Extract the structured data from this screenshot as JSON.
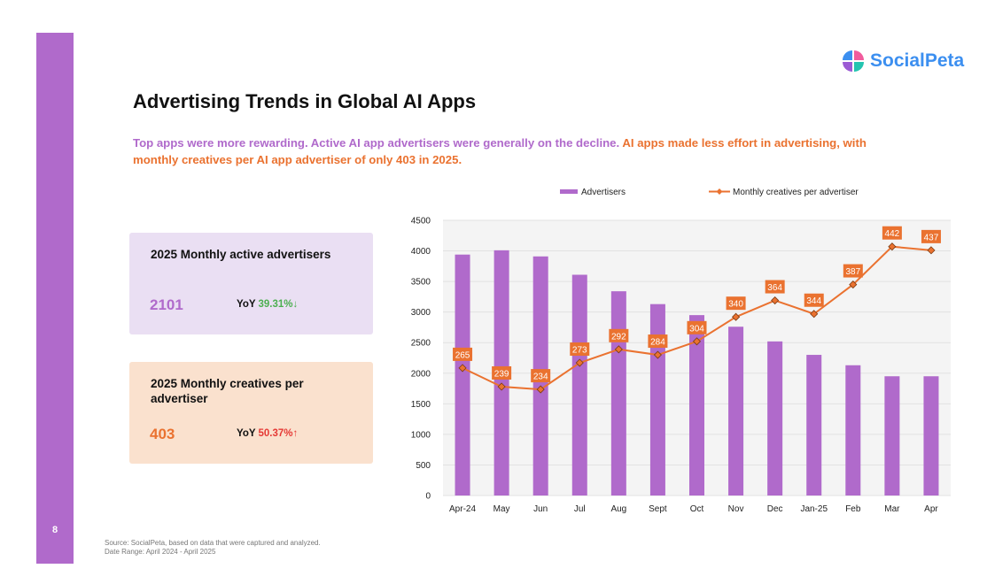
{
  "page": {
    "number": "8"
  },
  "logo": {
    "text": "SocialPeta",
    "colors": [
      "#3c8ff0",
      "#f15b9d",
      "#9b5bd4",
      "#23c4b0"
    ]
  },
  "title": "Advertising Trends in Global AI Apps",
  "subtitle": {
    "part_purple": "Top apps were more rewarding. Active AI app advertisers were generally on the decline.",
    "part_orange": "AI apps made less effort in advertising, with monthly creatives per AI app advertiser of only 403 in 2025."
  },
  "cards": [
    {
      "title": "2025 Monthly active advertisers",
      "value": "2101",
      "yoy_label": "YoY",
      "yoy_value": "39.31%",
      "arrow": "↓"
    },
    {
      "title": "2025 Monthly creatives per advertiser",
      "value": "403",
      "yoy_label": "YoY",
      "yoy_value": "50.37%",
      "arrow": "↑"
    }
  ],
  "footer": {
    "source": "Source: SocialPeta, based on data that were captured and analyzed.",
    "date_range": "Date Range: April 2024 - April 2025"
  },
  "colors": {
    "purple": "#b06acb",
    "orange": "#ea7230"
  },
  "chart_data": {
    "type": "bar",
    "categories": [
      "Apr-24",
      "May",
      "Jun",
      "Jul",
      "Aug",
      "Sept",
      "Oct",
      "Nov",
      "Dec",
      "Jan-25",
      "Feb",
      "Mar",
      "Apr"
    ],
    "series": [
      {
        "name": "Advertisers",
        "kind": "bar",
        "color": "#b06acb",
        "values": [
          3940,
          4010,
          3910,
          3610,
          3340,
          3130,
          2950,
          2760,
          2520,
          2300,
          2130,
          1950,
          1950
        ]
      },
      {
        "name": "Monthly creatives per advertiser",
        "kind": "line",
        "color": "#ea7230",
        "values": [
          2085,
          1780,
          1735,
          2170,
          2390,
          2300,
          2520,
          2920,
          3190,
          2970,
          3450,
          4070,
          4010
        ],
        "labels": [
          "265",
          "239",
          "234",
          "273",
          "292",
          "284",
          "304",
          "340",
          "364",
          "344",
          "387",
          "442",
          "437"
        ]
      }
    ],
    "ylim": [
      0,
      4500
    ],
    "yticks": [
      0,
      500,
      1000,
      1500,
      2000,
      2500,
      3000,
      3500,
      4000,
      4500
    ],
    "grid": true,
    "legend": "top"
  }
}
